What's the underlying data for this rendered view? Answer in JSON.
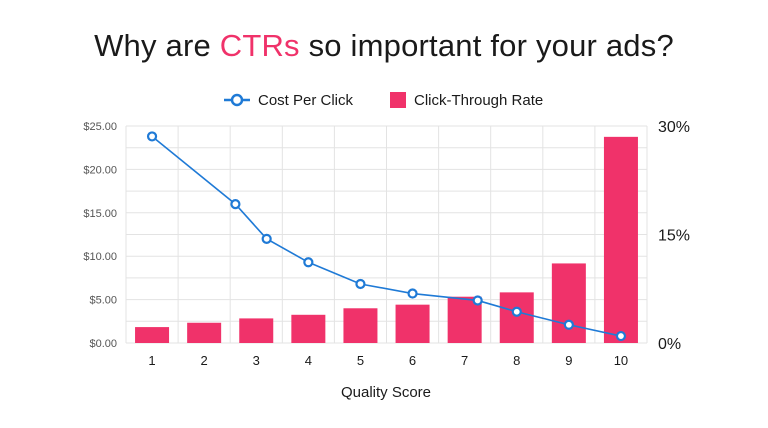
{
  "title": {
    "before": "Why are ",
    "accent": "CTRs",
    "after": " so important for your ads?"
  },
  "colors": {
    "line": "#1f7ad6",
    "bar": "#f0326a",
    "grid": "#e3e3e3",
    "title_accent": "#f0326a"
  },
  "chart_data": {
    "type": "bar",
    "categories": [
      "1",
      "2",
      "3",
      "4",
      "5",
      "6",
      "7",
      "8",
      "9",
      "10"
    ],
    "xlabel": "Quality Score",
    "y_left": {
      "ticks": [
        "$0.00",
        "$5.00",
        "$10.00",
        "$15.00",
        "$20.00",
        "$25.00"
      ],
      "ylim": [
        0,
        25
      ]
    },
    "y_right": {
      "ticks": [
        "0%",
        "15%",
        "30%"
      ],
      "ylim": [
        0,
        30
      ]
    },
    "grid": true,
    "legend_position": "top-center",
    "series": [
      {
        "name": "Cost Per Click",
        "type": "line",
        "axis": "left",
        "marker": "circle",
        "x": [
          1,
          2.6,
          3.2,
          4,
          5,
          6,
          7.25,
          8,
          9,
          10
        ],
        "values": [
          23.8,
          16.0,
          12.0,
          9.3,
          6.8,
          5.7,
          4.9,
          3.6,
          2.1,
          0.8
        ]
      },
      {
        "name": "Click-Through Rate",
        "type": "bar",
        "axis": "right",
        "x": [
          1,
          2,
          3,
          4,
          5,
          6,
          7,
          8,
          9,
          10
        ],
        "values": [
          2.2,
          2.8,
          3.4,
          3.9,
          4.8,
          5.3,
          6.4,
          7.0,
          11.0,
          28.5
        ]
      }
    ]
  }
}
